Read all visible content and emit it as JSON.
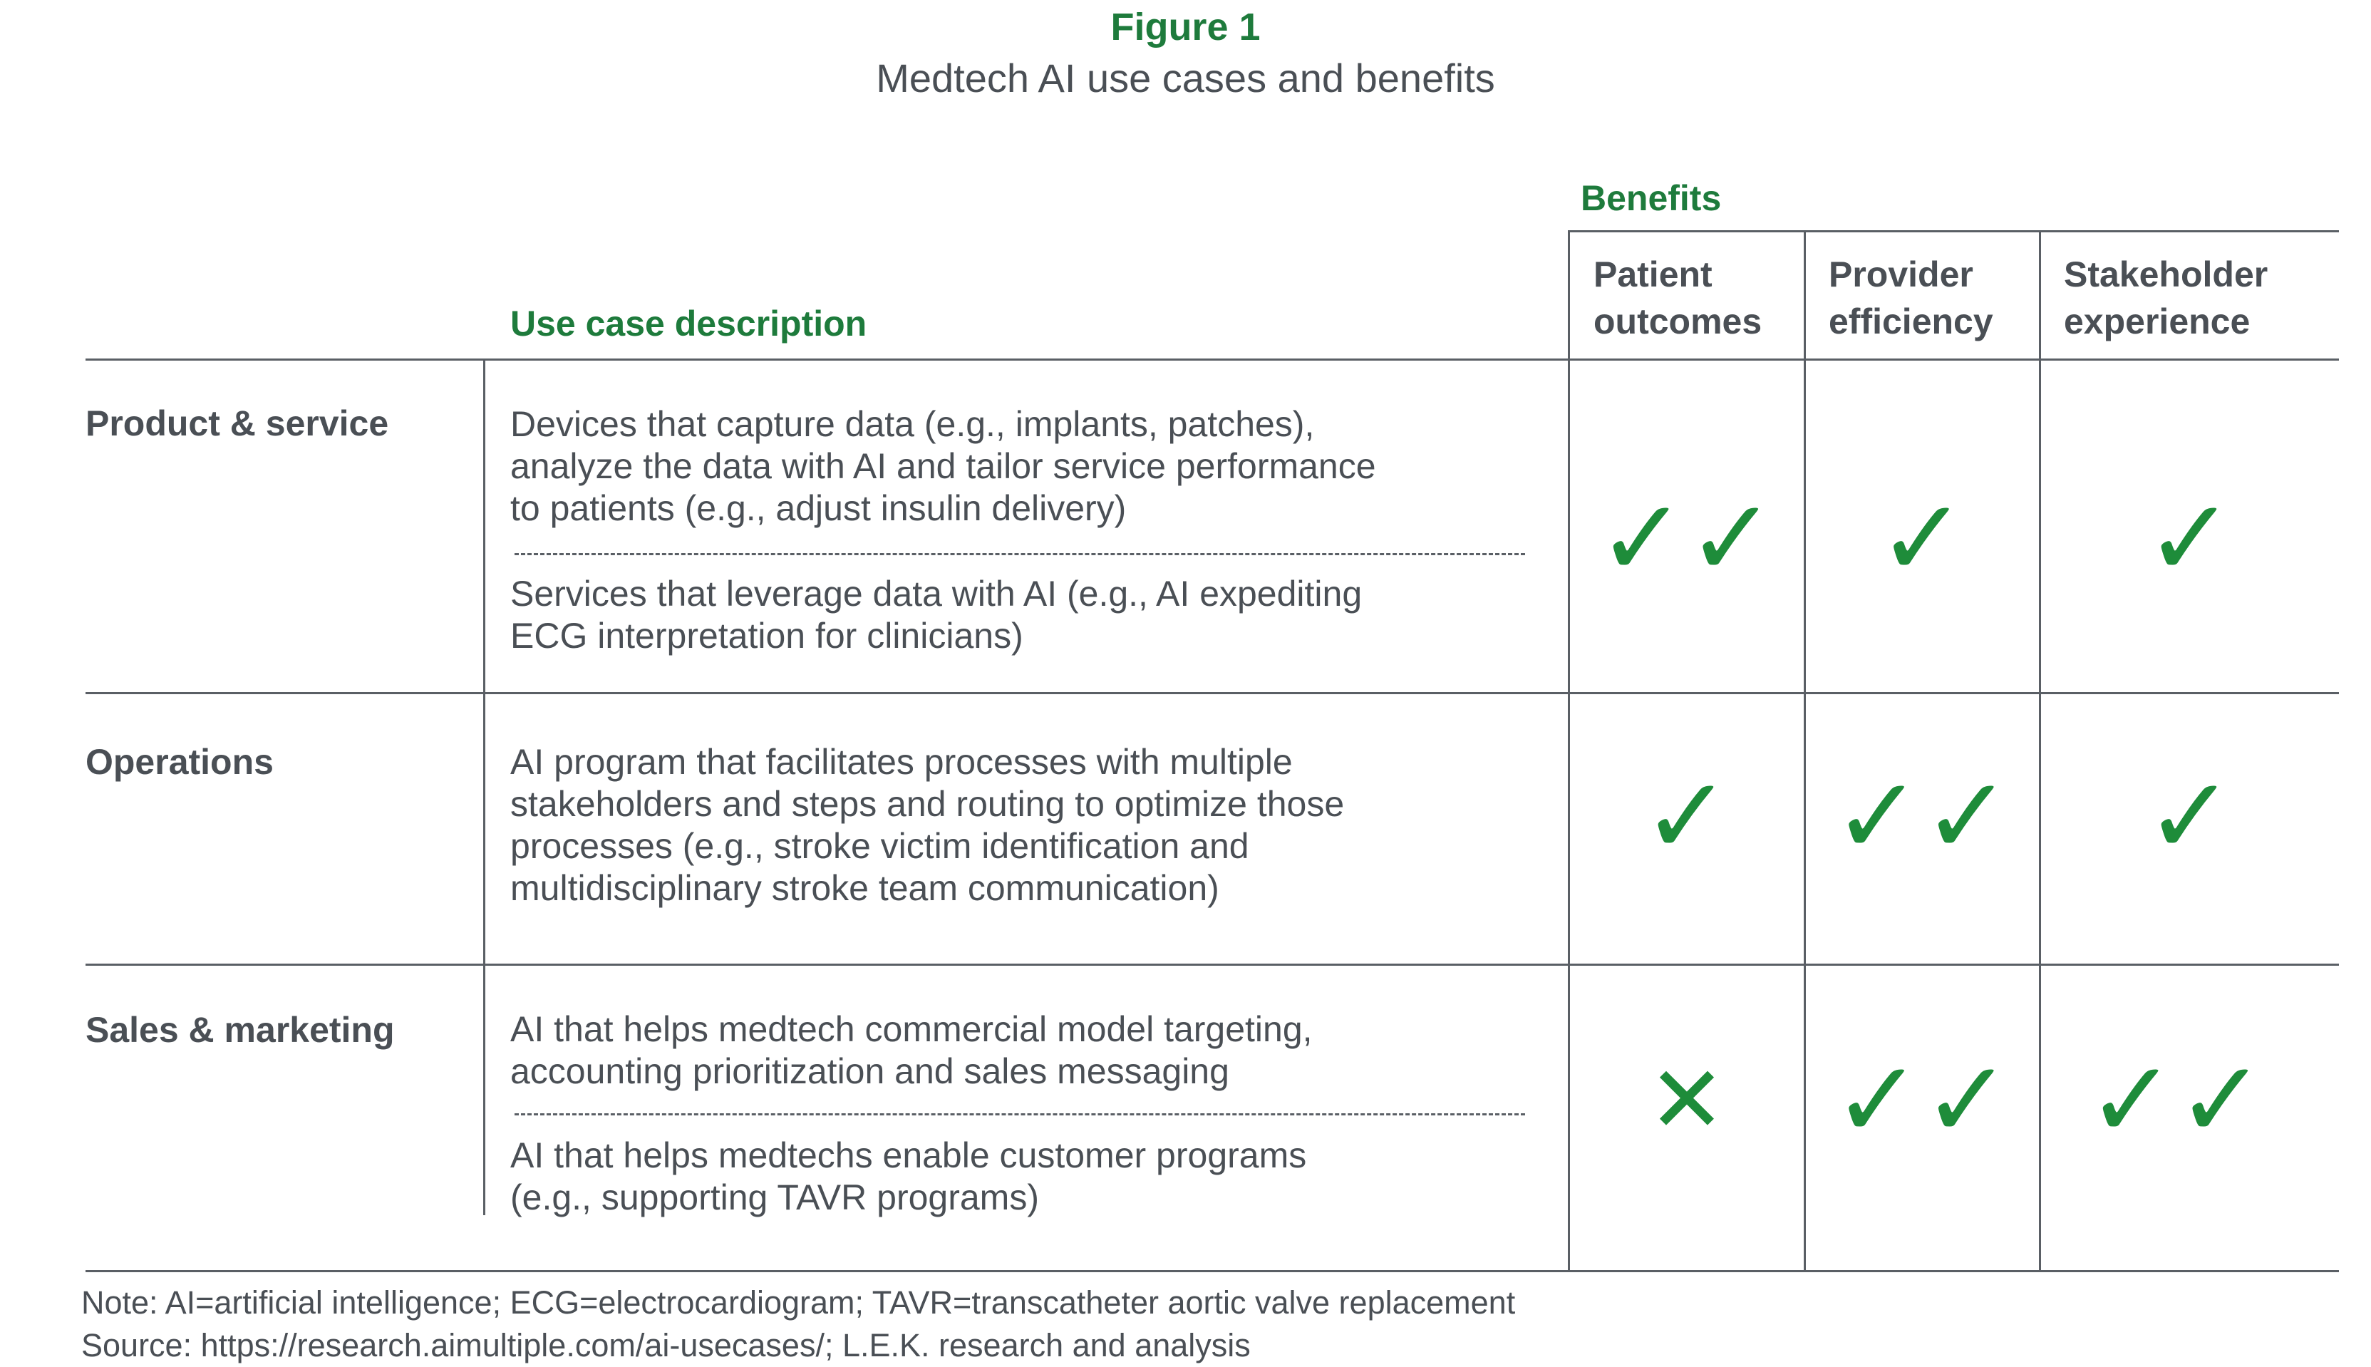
{
  "figure": {
    "label": "Figure 1",
    "title": "Medtech AI use cases and benefits"
  },
  "headers": {
    "benefits": "Benefits",
    "use_case_description": "Use case description",
    "columns": [
      {
        "line1": "Patient",
        "line2": "outcomes"
      },
      {
        "line1": "Provider",
        "line2": "efficiency"
      },
      {
        "line1": "Stakeholder",
        "line2": "experience"
      }
    ]
  },
  "rows": [
    {
      "label": "Product & service",
      "descriptions": [
        [
          "Devices that capture data (e.g., implants, patches),",
          "analyze the data with AI and tailor service performance",
          "to patients (e.g., adjust insulin delivery)"
        ],
        [
          "Services that leverage data with AI (e.g., AI expediting",
          "ECG interpretation for clinicians)"
        ]
      ],
      "benefits": {
        "patient_outcomes": "✓✓",
        "provider_efficiency": "✓",
        "stakeholder_experience": "✓"
      }
    },
    {
      "label": "Operations",
      "descriptions": [
        [
          "AI program that facilitates processes with multiple",
          "stakeholders and steps and routing to optimize those",
          "processes (e.g., stroke victim identification and",
          "multidisciplinary stroke team communication)"
        ]
      ],
      "benefits": {
        "patient_outcomes": "✓",
        "provider_efficiency": "✓✓",
        "stakeholder_experience": "✓"
      }
    },
    {
      "label": "Sales & marketing",
      "descriptions": [
        [
          "AI that helps medtech commercial model targeting,",
          "accounting prioritization and sales messaging"
        ],
        [
          "AI that helps medtechs enable customer programs",
          "(e.g., supporting TAVR programs)"
        ]
      ],
      "benefits": {
        "patient_outcomes": "✕",
        "provider_efficiency": "✓✓",
        "stakeholder_experience": "✓✓"
      }
    }
  ],
  "footer": {
    "note": "Note: AI=artificial intelligence; ECG=electrocardiogram; TAVR=transcatheter aortic valve replacement",
    "source": "Source: https://research.aimultiple.com/ai-usecases/; L.E.K. research and analysis"
  },
  "colors": {
    "accent_green": "#1e7b3c",
    "check_green": "#1e8c3a",
    "text_gray": "#4a4f55",
    "rule_gray": "#5a5f65"
  }
}
